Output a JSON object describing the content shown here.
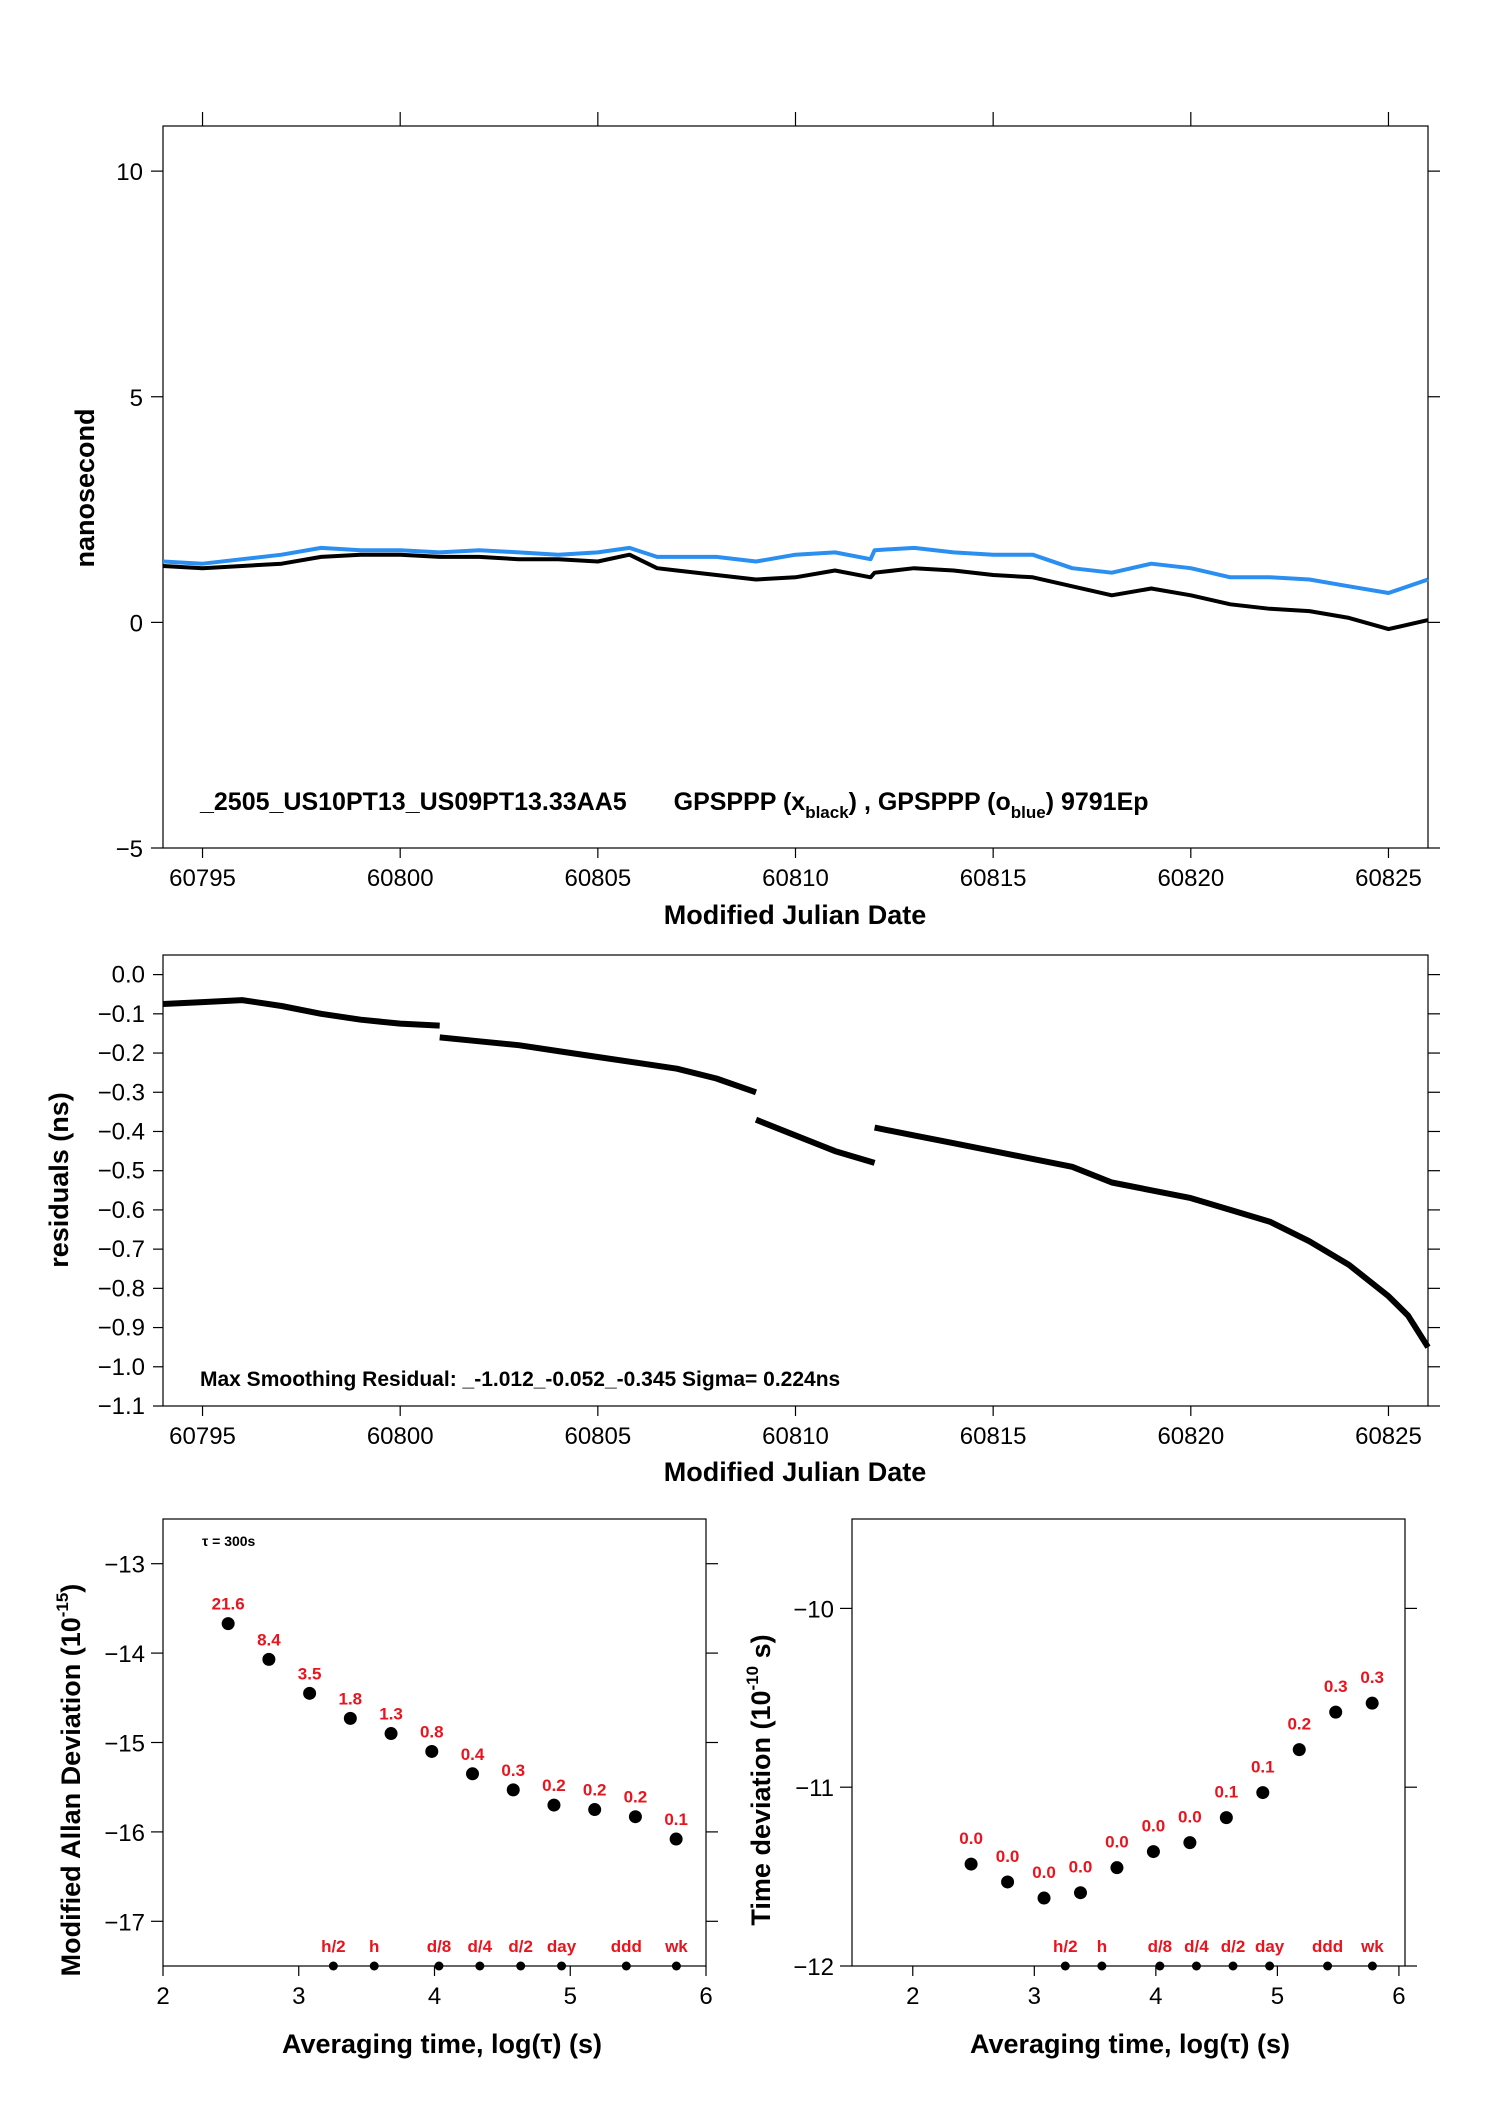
{
  "colors": {
    "black_series": "#000000",
    "blue_series": "#2a8ff0",
    "red_labels": "#e8141e"
  },
  "chart_data": [
    {
      "type": "line",
      "xlabel": "Modified Julian Date",
      "ylabel": "nanosecond",
      "xlim": [
        60794,
        60826
      ],
      "ylim": [
        -5,
        11
      ],
      "xticks": [
        "60795",
        "60800",
        "60805",
        "60810",
        "60815",
        "60820",
        "60825"
      ],
      "yticks": [
        "−5",
        "0",
        "5",
        "10"
      ],
      "annotation": {
        "prefix": "_2505_US10PT13_US09PT13.33AA5",
        "part1": "GPSPPP (x",
        "sub1": "black",
        "part2": ") ,  GPSPPP (o",
        "sub2": "blue",
        "part3": ")  9791Ep"
      },
      "series": [
        {
          "color": "#000000",
          "x": [
            60794,
            60795,
            60796,
            60797,
            60798,
            60799,
            60800,
            60801,
            60802,
            60803,
            60804,
            60805,
            60805.8,
            60806.5,
            60807,
            60808,
            60809,
            60810,
            60811,
            60811.9,
            60812,
            60813,
            60814,
            60815,
            60816,
            60817,
            60818,
            60819,
            60820,
            60821,
            60822,
            60823,
            60824,
            60825,
            60826
          ],
          "y": [
            1.25,
            1.2,
            1.25,
            1.3,
            1.45,
            1.5,
            1.5,
            1.45,
            1.45,
            1.4,
            1.4,
            1.35,
            1.5,
            1.2,
            1.15,
            1.05,
            0.95,
            1.0,
            1.15,
            1.0,
            1.1,
            1.2,
            1.15,
            1.05,
            1.0,
            0.8,
            0.6,
            0.75,
            0.6,
            0.4,
            0.3,
            0.25,
            0.1,
            -0.15,
            0.05
          ]
        },
        {
          "color": "#2a8ff0",
          "x": [
            60794,
            60795,
            60796,
            60797,
            60798,
            60799,
            60800,
            60801,
            60802,
            60803,
            60804,
            60805,
            60805.8,
            60806.5,
            60807,
            60808,
            60809,
            60810,
            60811,
            60811.9,
            60812,
            60813,
            60814,
            60815,
            60816,
            60817,
            60818,
            60819,
            60820,
            60821,
            60822,
            60823,
            60824,
            60825,
            60826
          ],
          "y": [
            1.35,
            1.3,
            1.4,
            1.5,
            1.65,
            1.6,
            1.6,
            1.55,
            1.6,
            1.55,
            1.5,
            1.55,
            1.65,
            1.45,
            1.45,
            1.45,
            1.35,
            1.5,
            1.55,
            1.4,
            1.6,
            1.65,
            1.55,
            1.5,
            1.5,
            1.2,
            1.1,
            1.3,
            1.2,
            1.0,
            1.0,
            0.95,
            0.8,
            0.65,
            0.95
          ]
        }
      ]
    },
    {
      "type": "line",
      "xlabel": "Modified Julian Date",
      "ylabel": "residuals (ns)",
      "xlim": [
        60794,
        60826
      ],
      "ylim": [
        -1.1,
        0.05
      ],
      "xticks": [
        "60795",
        "60800",
        "60805",
        "60810",
        "60815",
        "60820",
        "60825"
      ],
      "yticks": [
        "0.0",
        "−0.1",
        "−0.2",
        "−0.3",
        "−0.4",
        "−0.5",
        "−0.6",
        "−0.7",
        "−0.8",
        "−0.9",
        "−1.0",
        "−1.1"
      ],
      "annotation": "Max Smoothing Residual: _-1.012_-0.052_-0.345  Sigma= 0.224ns",
      "series": [
        {
          "color": "#000000",
          "segments": [
            {
              "x": [
                60794,
                60795,
                60796,
                60797,
                60798,
                60799,
                60800,
                60801
              ],
              "y": [
                -0.075,
                -0.07,
                -0.065,
                -0.08,
                -0.1,
                -0.115,
                -0.125,
                -0.13
              ]
            },
            {
              "x": [
                60801,
                60802,
                60803,
                60804,
                60805,
                60806,
                60807,
                60808,
                60809
              ],
              "y": [
                -0.16,
                -0.17,
                -0.18,
                -0.195,
                -0.21,
                -0.225,
                -0.24,
                -0.265,
                -0.3
              ]
            },
            {
              "x": [
                60809,
                60810,
                60811,
                60812
              ],
              "y": [
                -0.37,
                -0.41,
                -0.45,
                -0.48
              ]
            },
            {
              "x": [
                60812,
                60813,
                60814,
                60815,
                60816,
                60817,
                60818,
                60819,
                60820,
                60821,
                60822,
                60823,
                60824,
                60825,
                60825.5,
                60826
              ],
              "y": [
                -0.39,
                -0.41,
                -0.43,
                -0.45,
                -0.47,
                -0.49,
                -0.53,
                -0.55,
                -0.57,
                -0.6,
                -0.63,
                -0.68,
                -0.74,
                -0.82,
                -0.87,
                -0.95
              ]
            }
          ]
        }
      ]
    },
    {
      "type": "scatter",
      "xlabel": "Averaging time, log(τ) (s)",
      "ylabel_main": "Modified Allan Deviation (10",
      "ylabel_sup": "-15",
      "ylabel_end": ")",
      "xlim": [
        2,
        6
      ],
      "ylim": [
        -17.5,
        -12.5
      ],
      "xticks": [
        "2",
        "3",
        "4",
        "5",
        "6"
      ],
      "yticks": [
        "−13",
        "−14",
        "−15",
        "−16",
        "−17"
      ],
      "note": "τ = 300s",
      "x": [
        2.48,
        2.78,
        3.08,
        3.38,
        3.68,
        3.98,
        4.28,
        4.58,
        4.88,
        5.18,
        5.48,
        5.78
      ],
      "y": [
        -13.67,
        -14.07,
        -14.45,
        -14.73,
        -14.9,
        -15.1,
        -15.35,
        -15.53,
        -15.7,
        -15.75,
        -15.83,
        -16.08
      ],
      "point_labels": [
        "21.6",
        "8.4",
        "3.5",
        "1.8",
        "1.3",
        "0.8",
        "0.4",
        "0.3",
        "0.2",
        "0.2",
        "0.2",
        "0.1"
      ],
      "markers": [
        {
          "label": "h/2",
          "x": 3.255
        },
        {
          "label": "h",
          "x": 3.556
        },
        {
          "label": "d/8",
          "x": 4.033
        },
        {
          "label": "d/4",
          "x": 4.334
        },
        {
          "label": "d/2",
          "x": 4.635
        },
        {
          "label": "day",
          "x": 4.936
        },
        {
          "label": "ddd",
          "x": 5.413
        },
        {
          "label": "wk",
          "x": 5.782
        }
      ]
    },
    {
      "type": "scatter",
      "xlabel": "Averaging time, log(τ) (s)",
      "ylabel_main": "Time deviation (10",
      "ylabel_sup": "-10",
      "ylabel_end": " s)",
      "xlim": [
        1.5,
        6.05
      ],
      "ylim": [
        -12,
        -9.5
      ],
      "xticks": [
        "2",
        "3",
        "4",
        "5",
        "6"
      ],
      "yticks": [
        "−10",
        "−11",
        "−12"
      ],
      "x": [
        2.48,
        2.78,
        3.08,
        3.38,
        3.68,
        3.98,
        4.28,
        4.58,
        4.88,
        5.18,
        5.48,
        5.78
      ],
      "y": [
        -11.43,
        -11.53,
        -11.62,
        -11.59,
        -11.45,
        -11.36,
        -11.31,
        -11.17,
        -11.03,
        -10.79,
        -10.58,
        -10.53
      ],
      "point_labels": [
        "0.0",
        "0.0",
        "0.0",
        "0.0",
        "0.0",
        "0.0",
        "0.0",
        "0.1",
        "0.1",
        "0.2",
        "0.3",
        "0.3"
      ],
      "markers": [
        {
          "label": "h/2",
          "x": 3.255
        },
        {
          "label": "h",
          "x": 3.556
        },
        {
          "label": "d/8",
          "x": 4.033
        },
        {
          "label": "d/4",
          "x": 4.334
        },
        {
          "label": "d/2",
          "x": 4.635
        },
        {
          "label": "day",
          "x": 4.936
        },
        {
          "label": "ddd",
          "x": 5.413
        },
        {
          "label": "wk",
          "x": 5.782
        }
      ]
    }
  ]
}
